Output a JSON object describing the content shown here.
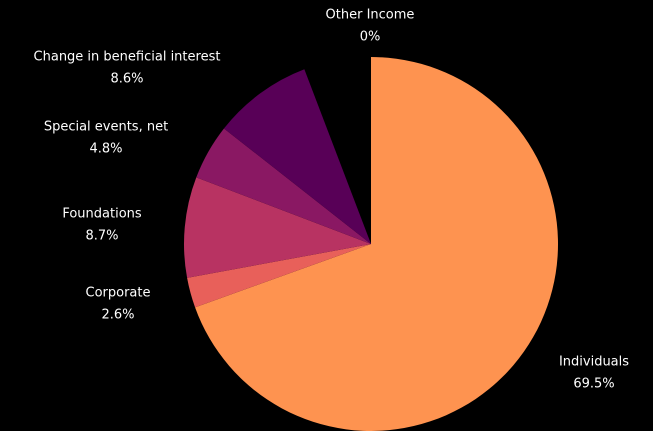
{
  "chart_data": {
    "type": "pie",
    "categories": [
      "Individuals",
      "Corporate",
      "Foundations",
      "Special events, net",
      "Change in beneficial interest",
      "Other Income"
    ],
    "values": [
      69.5,
      2.6,
      8.7,
      4.8,
      8.6,
      0
    ],
    "value_labels": [
      "69.5%",
      "2.6%",
      "8.7%",
      "4.8%",
      "8.6%",
      "0%"
    ],
    "colors": [
      "#fe9350",
      "#e8605a",
      "#b83362",
      "#8a1863",
      "#580057",
      "#4f3b8c"
    ]
  }
}
